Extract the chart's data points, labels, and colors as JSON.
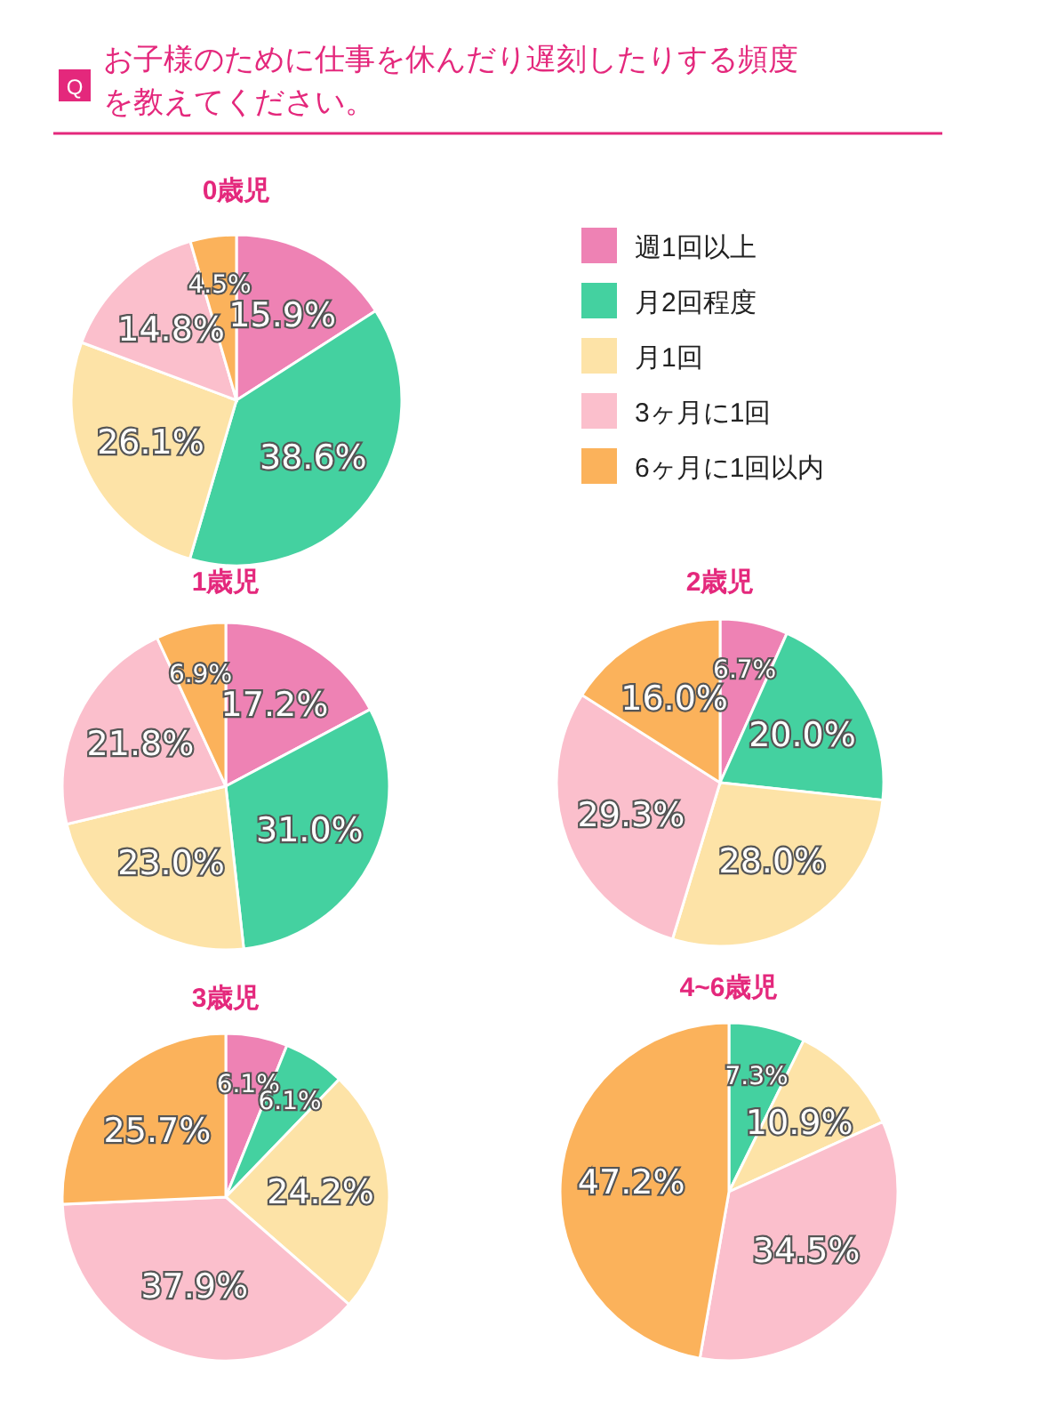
{
  "chart_data": [
    {
      "type": "pie",
      "title": "0歳児",
      "annotations": [
        "Q",
        "お子様のために仕事を休んだり遅刻したりする頻度を教えてください。"
      ],
      "legend": "right",
      "categories": [
        "週1回以上",
        "月2回程度",
        "月1回",
        "3ヶ月に1回",
        "6ヶ月に1回以内"
      ],
      "colors": [
        "#ee82b4",
        "#44d1a0",
        "#fde3a7",
        "#fbbfcc",
        "#fbb25b"
      ],
      "values": [
        15.9,
        38.6,
        26.1,
        14.8,
        4.5
      ],
      "value_labels": [
        "15.9%",
        "38.6%",
        "26.1%",
        "14.8%",
        "4.5%"
      ]
    },
    {
      "type": "pie",
      "title": "1歳児",
      "categories": [
        null,
        null,
        null,
        null,
        null
      ],
      "colors": [
        "#ee82b4",
        "#44d1a0",
        "#fde3a7",
        "#fbbfcc",
        "#fbb25b"
      ],
      "values": [
        17.2,
        31.0,
        23.0,
        21.8,
        6.9
      ],
      "value_labels": [
        "17.2%",
        "31.0%",
        "23.0%",
        "21.8%",
        "6.9%"
      ]
    },
    {
      "type": "pie",
      "title": "2歳児",
      "categories": [
        null,
        null,
        null,
        null,
        null
      ],
      "colors": [
        "#ee82b4",
        "#44d1a0",
        "#fde3a7",
        "#fbbfcc",
        "#fbb25b"
      ],
      "values": [
        6.7,
        20.0,
        28.0,
        29.3,
        16.0
      ],
      "value_labels": [
        "6.7%",
        "20.0%",
        "28.0%",
        "29.3%",
        "16.0%"
      ]
    },
    {
      "type": "pie",
      "title": "3歳児",
      "categories": [
        null,
        null,
        null,
        null,
        null
      ],
      "colors": [
        "#ee82b4",
        "#44d1a0",
        "#fde3a7",
        "#fbbfcc",
        "#fbb25b"
      ],
      "values": [
        6.1,
        6.1,
        24.2,
        37.9,
        25.7
      ],
      "value_labels": [
        "6.1%",
        "6.1%",
        "24.2%",
        "37.9%",
        "25.7%"
      ]
    },
    {
      "type": "pie",
      "title": "4~6歳児",
      "categories": [
        null,
        null,
        null,
        null
      ],
      "colors": [
        "#44d1a0",
        "#fde3a7",
        "#fbbfcc",
        "#fbb25b"
      ],
      "values": [
        7.3,
        10.9,
        34.5,
        47.2
      ],
      "value_labels": [
        "7.3%",
        "10.9%",
        "34.5%",
        "47.2%"
      ]
    }
  ]
}
